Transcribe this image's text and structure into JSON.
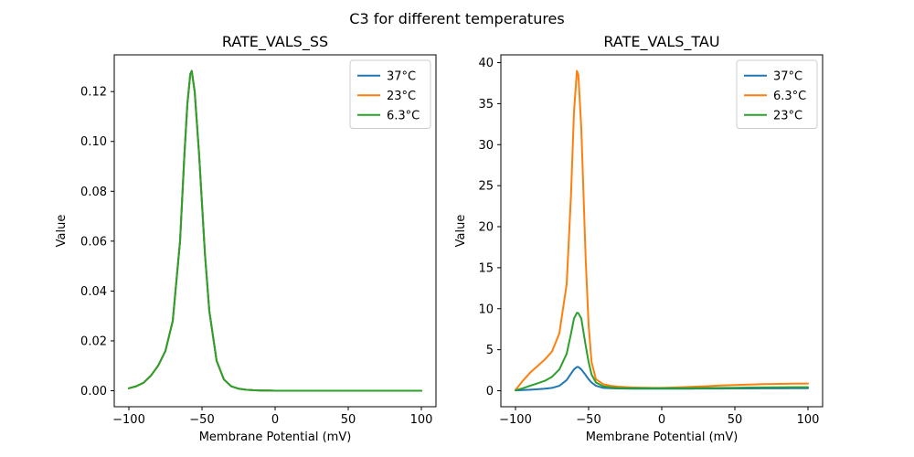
{
  "figure": {
    "suptitle": "C3 for different temperatures",
    "background": "#ffffff"
  },
  "palette": {
    "blue": "#1f77b4",
    "orange": "#ff7f0e",
    "green": "#2ca02c",
    "spine": "#000000",
    "legend_border": "#cccccc"
  },
  "chart_data": [
    {
      "id": "rate-vals-ss",
      "type": "line",
      "title": "RATE_VALS_SS",
      "xlabel": "Membrane Potential (mV)",
      "ylabel": "Value",
      "xlim": [
        -110,
        110
      ],
      "ylim": [
        -0.00642,
        0.13474
      ],
      "grid": false,
      "legend_position": "upper-right",
      "xticks": {
        "values": [
          -100,
          -50,
          0,
          50,
          100
        ],
        "labels": [
          "−100",
          "−50",
          "0",
          "50",
          "100"
        ]
      },
      "yticks": {
        "values": [
          0,
          0.02,
          0.04,
          0.06,
          0.08,
          0.1,
          0.12
        ],
        "labels": [
          "0.00",
          "0.02",
          "0.04",
          "0.06",
          "0.08",
          "0.10",
          "0.12"
        ]
      },
      "x": [
        -100,
        -95,
        -90,
        -85,
        -80,
        -75,
        -70,
        -65,
        -62,
        -60,
        -58,
        -57,
        -55,
        -52,
        -50,
        -48,
        -45,
        -40,
        -35,
        -30,
        -25,
        -20,
        -15,
        -10,
        -5,
        0,
        10,
        20,
        30,
        40,
        50,
        60,
        70,
        80,
        90,
        100
      ],
      "series": [
        {
          "name": "37°C",
          "color": "#1f77b4",
          "values": [
            0.001,
            0.0018,
            0.0032,
            0.006,
            0.01,
            0.016,
            0.028,
            0.06,
            0.095,
            0.115,
            0.127,
            0.1283,
            0.12,
            0.095,
            0.075,
            0.055,
            0.032,
            0.012,
            0.0045,
            0.0018,
            0.0008,
            0.0004,
            0.0002,
            0.0001,
            0.0001,
            0,
            0,
            0,
            0,
            0,
            0,
            0,
            0,
            0,
            0,
            0
          ]
        },
        {
          "name": "23°C",
          "color": "#ff7f0e",
          "values": [
            0.001,
            0.0018,
            0.0032,
            0.006,
            0.01,
            0.016,
            0.028,
            0.06,
            0.095,
            0.115,
            0.127,
            0.1283,
            0.12,
            0.095,
            0.075,
            0.055,
            0.032,
            0.012,
            0.0045,
            0.0018,
            0.0008,
            0.0004,
            0.0002,
            0.0001,
            0.0001,
            0,
            0,
            0,
            0,
            0,
            0,
            0,
            0,
            0,
            0,
            0
          ]
        },
        {
          "name": "6.3°C",
          "color": "#2ca02c",
          "values": [
            0.001,
            0.0018,
            0.0032,
            0.006,
            0.01,
            0.016,
            0.028,
            0.06,
            0.095,
            0.115,
            0.127,
            0.1283,
            0.12,
            0.095,
            0.075,
            0.055,
            0.032,
            0.012,
            0.0045,
            0.0018,
            0.0008,
            0.0004,
            0.0002,
            0.0001,
            0.0001,
            0,
            0,
            0,
            0,
            0,
            0,
            0,
            0,
            0,
            0,
            0
          ]
        }
      ],
      "annotation_note": "all three temperature curves coincide; peak ≈ 0.128 at ≈ −57 mV"
    },
    {
      "id": "rate-vals-tau",
      "type": "line",
      "title": "RATE_VALS_TAU",
      "xlabel": "Membrane Potential (mV)",
      "ylabel": "Value",
      "xlim": [
        -110,
        110
      ],
      "ylim": [
        -1.95,
        40.95
      ],
      "grid": false,
      "legend_position": "upper-right",
      "xticks": {
        "values": [
          -100,
          -50,
          0,
          50,
          100
        ],
        "labels": [
          "−100",
          "−50",
          "0",
          "50",
          "100"
        ]
      },
      "yticks": {
        "values": [
          0,
          5,
          10,
          15,
          20,
          25,
          30,
          35,
          40
        ],
        "labels": [
          "0",
          "5",
          "10",
          "15",
          "20",
          "25",
          "30",
          "35",
          "40"
        ]
      },
      "x": [
        -100,
        -95,
        -90,
        -85,
        -80,
        -75,
        -70,
        -65,
        -62,
        -60,
        -58,
        -57,
        -55,
        -52,
        -50,
        -48,
        -45,
        -40,
        -35,
        -30,
        -25,
        -20,
        -15,
        -10,
        -5,
        0,
        10,
        20,
        30,
        40,
        50,
        60,
        70,
        80,
        90,
        100
      ],
      "series": [
        {
          "name": "37°C",
          "color": "#1f77b4",
          "values": [
            0.05,
            0.08,
            0.12,
            0.18,
            0.25,
            0.35,
            0.6,
            1.3,
            2.1,
            2.6,
            2.9,
            2.9,
            2.6,
            1.9,
            1.4,
            1.0,
            0.6,
            0.35,
            0.3,
            0.28,
            0.27,
            0.26,
            0.25,
            0.25,
            0.25,
            0.25,
            0.25,
            0.26,
            0.27,
            0.27,
            0.28,
            0.28,
            0.29,
            0.29,
            0.3,
            0.3
          ]
        },
        {
          "name": "6.3°C",
          "color": "#ff7f0e",
          "values": [
            0.1,
            1.2,
            2.2,
            3.0,
            3.8,
            4.8,
            7.0,
            13.0,
            24.0,
            34.0,
            39.0,
            38.5,
            32.0,
            16.0,
            8.0,
            3.5,
            1.4,
            0.8,
            0.6,
            0.5,
            0.45,
            0.4,
            0.38,
            0.36,
            0.35,
            0.35,
            0.4,
            0.47,
            0.55,
            0.63,
            0.7,
            0.76,
            0.8,
            0.84,
            0.86,
            0.88
          ]
        },
        {
          "name": "23°C",
          "color": "#2ca02c",
          "values": [
            0.05,
            0.3,
            0.6,
            0.9,
            1.2,
            1.7,
            2.6,
            4.5,
            7.0,
            8.8,
            9.5,
            9.45,
            8.8,
            5.5,
            3.5,
            2.0,
            1.0,
            0.55,
            0.4,
            0.35,
            0.32,
            0.3,
            0.3,
            0.3,
            0.3,
            0.3,
            0.3,
            0.32,
            0.33,
            0.35,
            0.37,
            0.39,
            0.4,
            0.42,
            0.43,
            0.44
          ]
        }
      ],
      "annotation_note": "orange 6.3°C peak ≈ 39 at ≈ −58 mV; green 23°C peak ≈ 9.5; blue 37°C peak ≈ 2.9"
    }
  ]
}
